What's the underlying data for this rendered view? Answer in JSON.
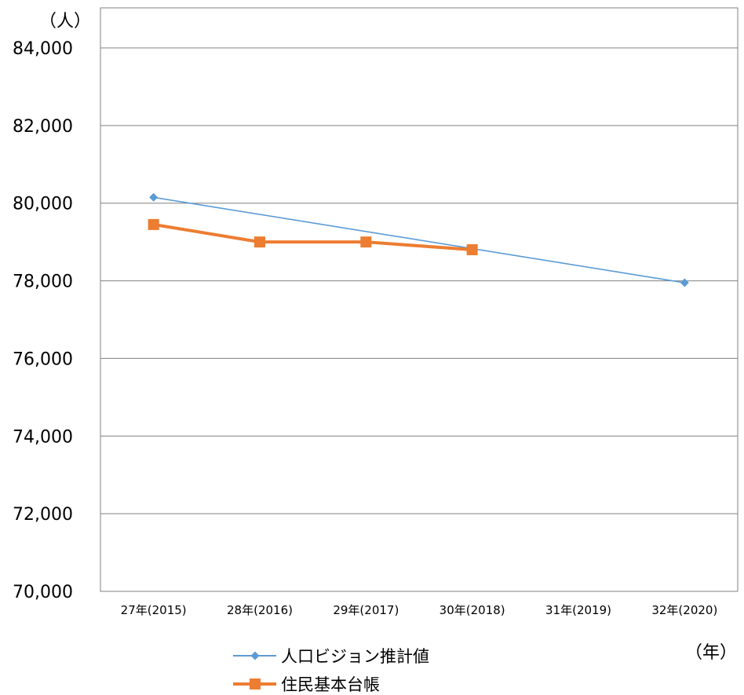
{
  "chart_data": {
    "type": "line",
    "categories": [
      "27年(2015)",
      "28年(2016)",
      "29年(2017)",
      "30年(2018)",
      "31年(2019)",
      "32年(2020)"
    ],
    "ylim": [
      70000,
      84000
    ],
    "yticks": [
      "70,000",
      "72,000",
      "74,000",
      "76,000",
      "78,000",
      "80,000",
      "82,000",
      "84,000"
    ],
    "ylabel": "（人）",
    "xlabel": "（年）",
    "grid": true,
    "legend_position": "bottom",
    "series": [
      {
        "name": "人口ビジョン推計値",
        "color": "#5B9BD5",
        "marker": "diamond",
        "values": [
          80150,
          null,
          null,
          null,
          null,
          77950
        ]
      },
      {
        "name": "住民基本台帳",
        "color": "#ED7D31",
        "marker": "square",
        "values": [
          79450,
          79000,
          79000,
          78800,
          null,
          null
        ]
      }
    ]
  }
}
